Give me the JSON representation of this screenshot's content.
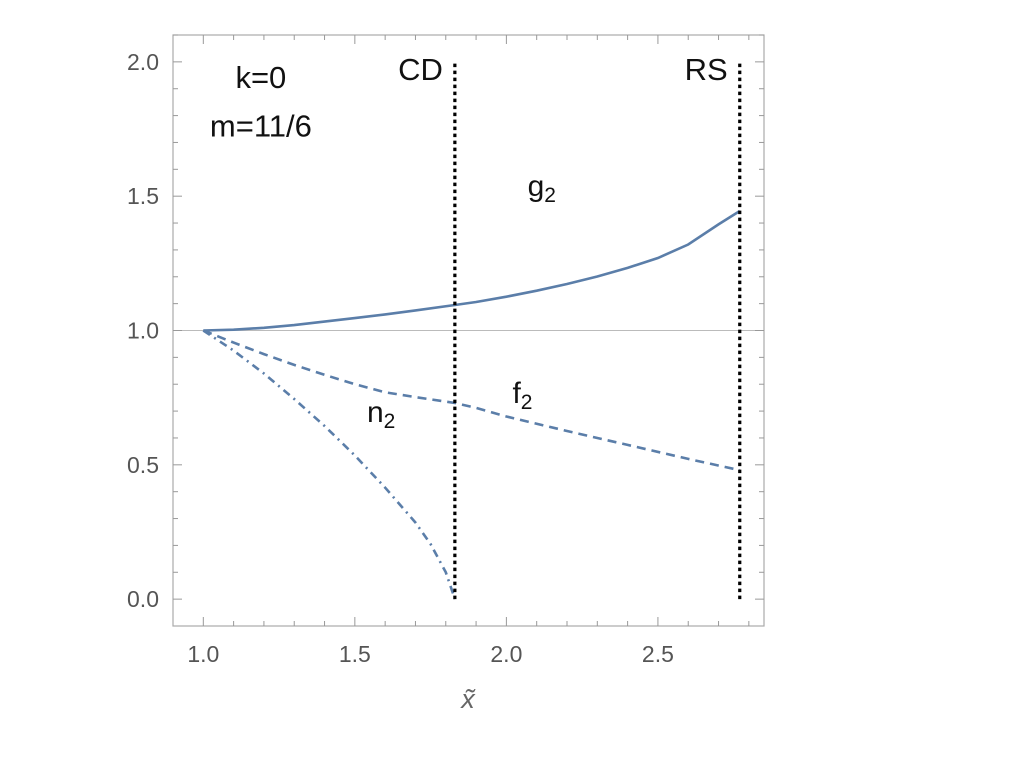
{
  "chart_data": {
    "type": "line",
    "title": "",
    "xlabel": "x̃",
    "ylabel": "",
    "xlim": [
      0.9,
      2.85
    ],
    "ylim": [
      -0.1,
      2.1
    ],
    "grid": false,
    "x_ticks": [
      1.0,
      1.5,
      2.0,
      2.5
    ],
    "x_tick_labels": [
      "1.0",
      "1.5",
      "2.0",
      "2.5"
    ],
    "y_ticks": [
      0.0,
      0.5,
      1.0,
      1.5,
      2.0
    ],
    "y_tick_labels": [
      "0.0",
      "0.5",
      "1.0",
      "1.5",
      "2.0"
    ],
    "reference_line": {
      "y": 1.0,
      "color": "#bbbbbb"
    },
    "annotations": [
      {
        "text": "k=0",
        "x": 1.19,
        "y": 1.94
      },
      {
        "text": "m=11/6",
        "x": 1.19,
        "y": 1.76
      }
    ],
    "vertical_lines": [
      {
        "label": "CD",
        "x": 1.83,
        "y_range": [
          0.0,
          2.0
        ],
        "style": "dotted",
        "color": "#000000"
      },
      {
        "label": "RS",
        "x": 2.77,
        "y_range": [
          0.0,
          2.0
        ],
        "style": "dotted",
        "color": "#000000"
      }
    ],
    "series": [
      {
        "name": "g",
        "subscript": "2",
        "style": "solid",
        "color": "#5b7ea9",
        "label_position": {
          "x": 2.07,
          "y": 1.5
        },
        "x": [
          1.0,
          1.1,
          1.2,
          1.3,
          1.4,
          1.5,
          1.6,
          1.7,
          1.83,
          1.9,
          2.0,
          2.1,
          2.2,
          2.3,
          2.4,
          2.5,
          2.6,
          2.7,
          2.77
        ],
        "y": [
          1.0,
          1.003,
          1.01,
          1.02,
          1.033,
          1.046,
          1.06,
          1.075,
          1.095,
          1.106,
          1.126,
          1.148,
          1.173,
          1.201,
          1.233,
          1.27,
          1.32,
          1.395,
          1.445
        ]
      },
      {
        "name": "f",
        "subscript": "2",
        "style": "dashed",
        "color": "#5b7ea9",
        "label_position": {
          "x": 2.02,
          "y": 0.73
        },
        "x": [
          1.0,
          1.1,
          1.2,
          1.3,
          1.4,
          1.5,
          1.6,
          1.7,
          1.83,
          1.9,
          2.0,
          2.2,
          2.4,
          2.6,
          2.77
        ],
        "y": [
          1.0,
          0.955,
          0.912,
          0.872,
          0.835,
          0.8,
          0.77,
          0.752,
          0.73,
          0.712,
          0.68,
          0.626,
          0.574,
          0.522,
          0.48
        ]
      },
      {
        "name": "n",
        "subscript": "2",
        "style": "dashdot",
        "color": "#5b7ea9",
        "label_position": {
          "x": 1.54,
          "y": 0.66
        },
        "x": [
          1.0,
          1.1,
          1.2,
          1.3,
          1.4,
          1.5,
          1.6,
          1.7,
          1.75,
          1.8,
          1.83
        ],
        "y": [
          1.0,
          0.925,
          0.84,
          0.745,
          0.645,
          0.535,
          0.415,
          0.285,
          0.205,
          0.1,
          0.0
        ]
      }
    ]
  }
}
